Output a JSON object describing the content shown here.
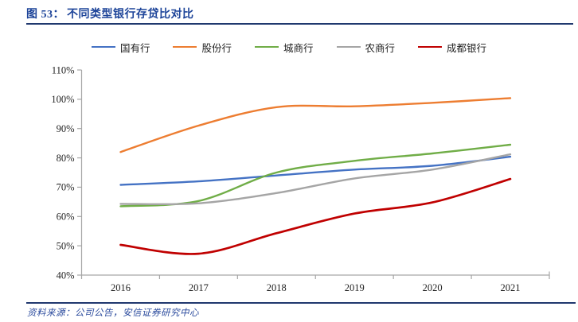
{
  "title": {
    "label": "图 53：",
    "text": "不同类型银行存贷比对比"
  },
  "footer": {
    "text": "资料来源：公司公告，安信证券研究中心"
  },
  "colors": {
    "title_blue": "#1d4499",
    "rule_blue": "#20386e",
    "footer_blue": "#2a4a9d",
    "axis_gray": "#a6a6a6",
    "tick_label": "#1f1f1f",
    "series_blue": "#4472C4",
    "series_orange": "#ED7D31",
    "series_green": "#70AD47",
    "series_gray": "#A5A5A5",
    "series_red": "#C00000"
  },
  "chart_data": {
    "type": "line",
    "title": "不同类型银行存贷比对比",
    "categories": [
      "2016",
      "2017",
      "2018",
      "2019",
      "2020",
      "2021"
    ],
    "series": [
      {
        "name": "国有行",
        "color": "#4472C4",
        "thickness": 2.4,
        "values": [
          70.8,
          72.0,
          74.0,
          76.0,
          77.3,
          80.4
        ]
      },
      {
        "name": "股份行",
        "color": "#ED7D31",
        "thickness": 2.4,
        "values": [
          82.0,
          91.0,
          97.3,
          97.6,
          98.8,
          100.4
        ]
      },
      {
        "name": "城商行",
        "color": "#70AD47",
        "thickness": 2.4,
        "values": [
          63.5,
          65.3,
          75.0,
          79.0,
          81.5,
          84.5
        ]
      },
      {
        "name": "农商行",
        "color": "#A5A5A5",
        "thickness": 2.4,
        "values": [
          64.3,
          64.5,
          68.0,
          73.0,
          76.0,
          81.2
        ]
      },
      {
        "name": "成都银行",
        "color": "#C00000",
        "thickness": 2.7,
        "values": [
          50.3,
          47.3,
          54.3,
          61.0,
          64.8,
          72.8
        ]
      }
    ],
    "ylim": [
      40,
      110
    ],
    "ytick_step": 10,
    "ytick_suffix": "%",
    "xlabel": "",
    "ylabel": "",
    "grid": false,
    "legend_position": "top",
    "line_style": "smooth"
  }
}
